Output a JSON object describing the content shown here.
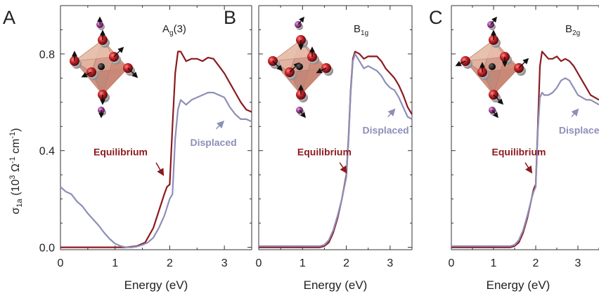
{
  "chart_data": [
    {
      "type": "line",
      "panel_letter": "A",
      "mode": {
        "main": "A",
        "sub": "g",
        "suffix": "(3)"
      },
      "xlabel": "Energy (eV)",
      "ylabel": {
        "sigma": "σ",
        "sub": "1a",
        "rest": " (10",
        "exp1": "3",
        "mid": " Ω",
        "exp2": "-1",
        "tail": " cm",
        "exp3": "-1",
        "close": ")"
      },
      "xlim": [
        0,
        3.5
      ],
      "ylim": [
        -0.01,
        1.0
      ],
      "xticks": [
        0,
        1,
        2,
        3
      ],
      "yticks": [
        0.0,
        0.4,
        0.8
      ],
      "ytick_labels": [
        "0.0",
        "0.4",
        "0.8"
      ],
      "colors": {
        "Equilibrium": "#8b1a1e",
        "Displaced": "#8d8fb8"
      },
      "series": [
        {
          "name": "Equilibrium",
          "x": [
            0,
            0.2,
            0.5,
            0.8,
            1.0,
            1.2,
            1.4,
            1.55,
            1.7,
            1.8,
            1.9,
            1.95,
            2.0,
            2.05,
            2.1,
            2.15,
            2.2,
            2.3,
            2.4,
            2.5,
            2.6,
            2.7,
            2.8,
            2.9,
            3.0,
            3.1,
            3.2,
            3.3,
            3.4,
            3.5
          ],
          "y": [
            0.0,
            0.0,
            0.0,
            0.0,
            0.0,
            0.0,
            0.005,
            0.02,
            0.08,
            0.15,
            0.22,
            0.25,
            0.26,
            0.5,
            0.72,
            0.81,
            0.81,
            0.77,
            0.78,
            0.78,
            0.77,
            0.785,
            0.78,
            0.75,
            0.72,
            0.68,
            0.64,
            0.6,
            0.57,
            0.56
          ]
        },
        {
          "name": "Displaced",
          "x": [
            0,
            0.1,
            0.2,
            0.3,
            0.4,
            0.5,
            0.6,
            0.7,
            0.8,
            0.9,
            1.0,
            1.1,
            1.2,
            1.3,
            1.4,
            1.5,
            1.6,
            1.7,
            1.8,
            1.9,
            2.0,
            2.05,
            2.1,
            2.15,
            2.2,
            2.3,
            2.4,
            2.5,
            2.6,
            2.7,
            2.8,
            2.9,
            3.0,
            3.1,
            3.2,
            3.3,
            3.4,
            3.5
          ],
          "y": [
            0.25,
            0.23,
            0.22,
            0.19,
            0.17,
            0.14,
            0.115,
            0.09,
            0.06,
            0.035,
            0.015,
            0.005,
            0.0,
            0.0,
            0.003,
            0.01,
            0.02,
            0.04,
            0.08,
            0.13,
            0.2,
            0.22,
            0.45,
            0.57,
            0.61,
            0.59,
            0.61,
            0.62,
            0.63,
            0.64,
            0.64,
            0.63,
            0.62,
            0.58,
            0.55,
            0.53,
            0.53,
            0.52
          ]
        }
      ],
      "annotations": [
        {
          "series": "Equilibrium",
          "text": "Equilibrium",
          "text_x": 1.1,
          "text_y": 0.38,
          "arrow_from": [
            1.75,
            0.35
          ],
          "arrow_to": [
            1.88,
            0.3
          ]
        },
        {
          "series": "Displaced",
          "text": "Displaced",
          "text_x": 2.8,
          "text_y": 0.42,
          "arrow_from": [
            2.85,
            0.49
          ],
          "arrow_to": [
            2.98,
            0.52
          ]
        }
      ]
    },
    {
      "type": "line",
      "panel_letter": "B",
      "mode": {
        "main": "B",
        "sub": "1g",
        "suffix": ""
      },
      "xlabel": "Energy (eV)",
      "xlim": [
        0,
        3.5
      ],
      "ylim": [
        -0.01,
        1.0
      ],
      "xticks": [
        0,
        1,
        2,
        3
      ],
      "yticks": [
        0.0,
        0.4,
        0.8
      ],
      "colors": {
        "Equilibrium": "#8b1a1e",
        "Displaced": "#8d8fb8"
      },
      "series": [
        {
          "name": "Equilibrium",
          "x": [
            0,
            0.3,
            0.6,
            0.9,
            1.2,
            1.4,
            1.5,
            1.6,
            1.7,
            1.8,
            1.9,
            2.0,
            2.05,
            2.1,
            2.15,
            2.2,
            2.3,
            2.4,
            2.5,
            2.6,
            2.7,
            2.8,
            2.9,
            3.0,
            3.1,
            3.2,
            3.3,
            3.4,
            3.5
          ],
          "y": [
            0.0,
            0.0,
            0.0,
            0.0,
            0.0,
            0.0,
            0.005,
            0.02,
            0.06,
            0.12,
            0.2,
            0.3,
            0.45,
            0.65,
            0.78,
            0.81,
            0.8,
            0.78,
            0.79,
            0.79,
            0.79,
            0.77,
            0.74,
            0.72,
            0.7,
            0.67,
            0.63,
            0.58,
            0.55
          ]
        },
        {
          "name": "Displaced",
          "x": [
            0,
            0.3,
            0.6,
            0.9,
            1.2,
            1.4,
            1.5,
            1.6,
            1.7,
            1.8,
            1.9,
            2.0,
            2.05,
            2.1,
            2.15,
            2.2,
            2.3,
            2.4,
            2.5,
            2.6,
            2.7,
            2.8,
            2.9,
            3.0,
            3.1,
            3.2,
            3.3,
            3.4,
            3.5
          ],
          "y": [
            0.005,
            0.005,
            0.005,
            0.005,
            0.005,
            0.005,
            0.01,
            0.03,
            0.07,
            0.13,
            0.2,
            0.29,
            0.44,
            0.64,
            0.77,
            0.8,
            0.77,
            0.74,
            0.75,
            0.74,
            0.73,
            0.71,
            0.68,
            0.66,
            0.65,
            0.62,
            0.58,
            0.54,
            0.53
          ]
        }
      ],
      "annotations": [
        {
          "series": "Equilibrium",
          "text": "Equilibrium",
          "text_x": 1.5,
          "text_y": 0.38,
          "arrow_from": [
            1.85,
            0.35
          ],
          "arrow_to": [
            2.0,
            0.31
          ]
        },
        {
          "series": "Displaced",
          "text": "Displaced",
          "text_x": 2.9,
          "text_y": 0.47,
          "arrow_from": [
            2.95,
            0.54
          ],
          "arrow_to": [
            3.1,
            0.57
          ]
        }
      ]
    },
    {
      "type": "line",
      "panel_letter": "C",
      "mode": {
        "main": "B",
        "sub": "2g",
        "suffix": ""
      },
      "xlabel": "Energy (eV)",
      "xlim": [
        0,
        3.5
      ],
      "ylim": [
        -0.01,
        1.0
      ],
      "xticks": [
        0,
        1,
        2,
        3
      ],
      "yticks": [
        0.0,
        0.4,
        0.8
      ],
      "colors": {
        "Equilibrium": "#8b1a1e",
        "Displaced": "#8d8fb8"
      },
      "series": [
        {
          "name": "Equilibrium",
          "x": [
            0,
            0.3,
            0.6,
            0.9,
            1.2,
            1.4,
            1.5,
            1.6,
            1.7,
            1.8,
            1.9,
            1.95,
            2.0,
            2.05,
            2.1,
            2.15,
            2.2,
            2.3,
            2.4,
            2.5,
            2.6,
            2.7,
            2.8,
            2.9,
            3.0,
            3.1,
            3.2,
            3.3,
            3.4,
            3.5
          ],
          "y": [
            0.0,
            0.0,
            0.0,
            0.0,
            0.0,
            0.0,
            0.005,
            0.02,
            0.06,
            0.12,
            0.2,
            0.24,
            0.26,
            0.5,
            0.75,
            0.81,
            0.8,
            0.78,
            0.78,
            0.79,
            0.77,
            0.78,
            0.77,
            0.75,
            0.72,
            0.69,
            0.66,
            0.63,
            0.62,
            0.61
          ]
        },
        {
          "name": "Displaced",
          "x": [
            0,
            0.3,
            0.6,
            0.9,
            1.2,
            1.4,
            1.5,
            1.6,
            1.7,
            1.8,
            1.9,
            1.95,
            2.0,
            2.05,
            2.1,
            2.15,
            2.2,
            2.3,
            2.4,
            2.5,
            2.6,
            2.7,
            2.8,
            2.9,
            3.0,
            3.1,
            3.2,
            3.3,
            3.4,
            3.5
          ],
          "y": [
            0.005,
            0.005,
            0.005,
            0.005,
            0.005,
            0.005,
            0.01,
            0.03,
            0.07,
            0.13,
            0.2,
            0.23,
            0.25,
            0.48,
            0.62,
            0.64,
            0.63,
            0.63,
            0.64,
            0.66,
            0.69,
            0.7,
            0.69,
            0.66,
            0.63,
            0.62,
            0.61,
            0.61,
            0.6,
            0.59
          ]
        }
      ],
      "annotations": [
        {
          "series": "Equilibrium",
          "text": "Equilibrium",
          "text_x": 1.6,
          "text_y": 0.38,
          "arrow_from": [
            1.75,
            0.35
          ],
          "arrow_to": [
            1.9,
            0.31
          ]
        },
        {
          "series": "Displaced",
          "text": "Displaced",
          "text_x": 3.1,
          "text_y": 0.47,
          "arrow_from": [
            2.85,
            0.54
          ],
          "arrow_to": [
            3.0,
            0.57
          ]
        }
      ]
    }
  ]
}
